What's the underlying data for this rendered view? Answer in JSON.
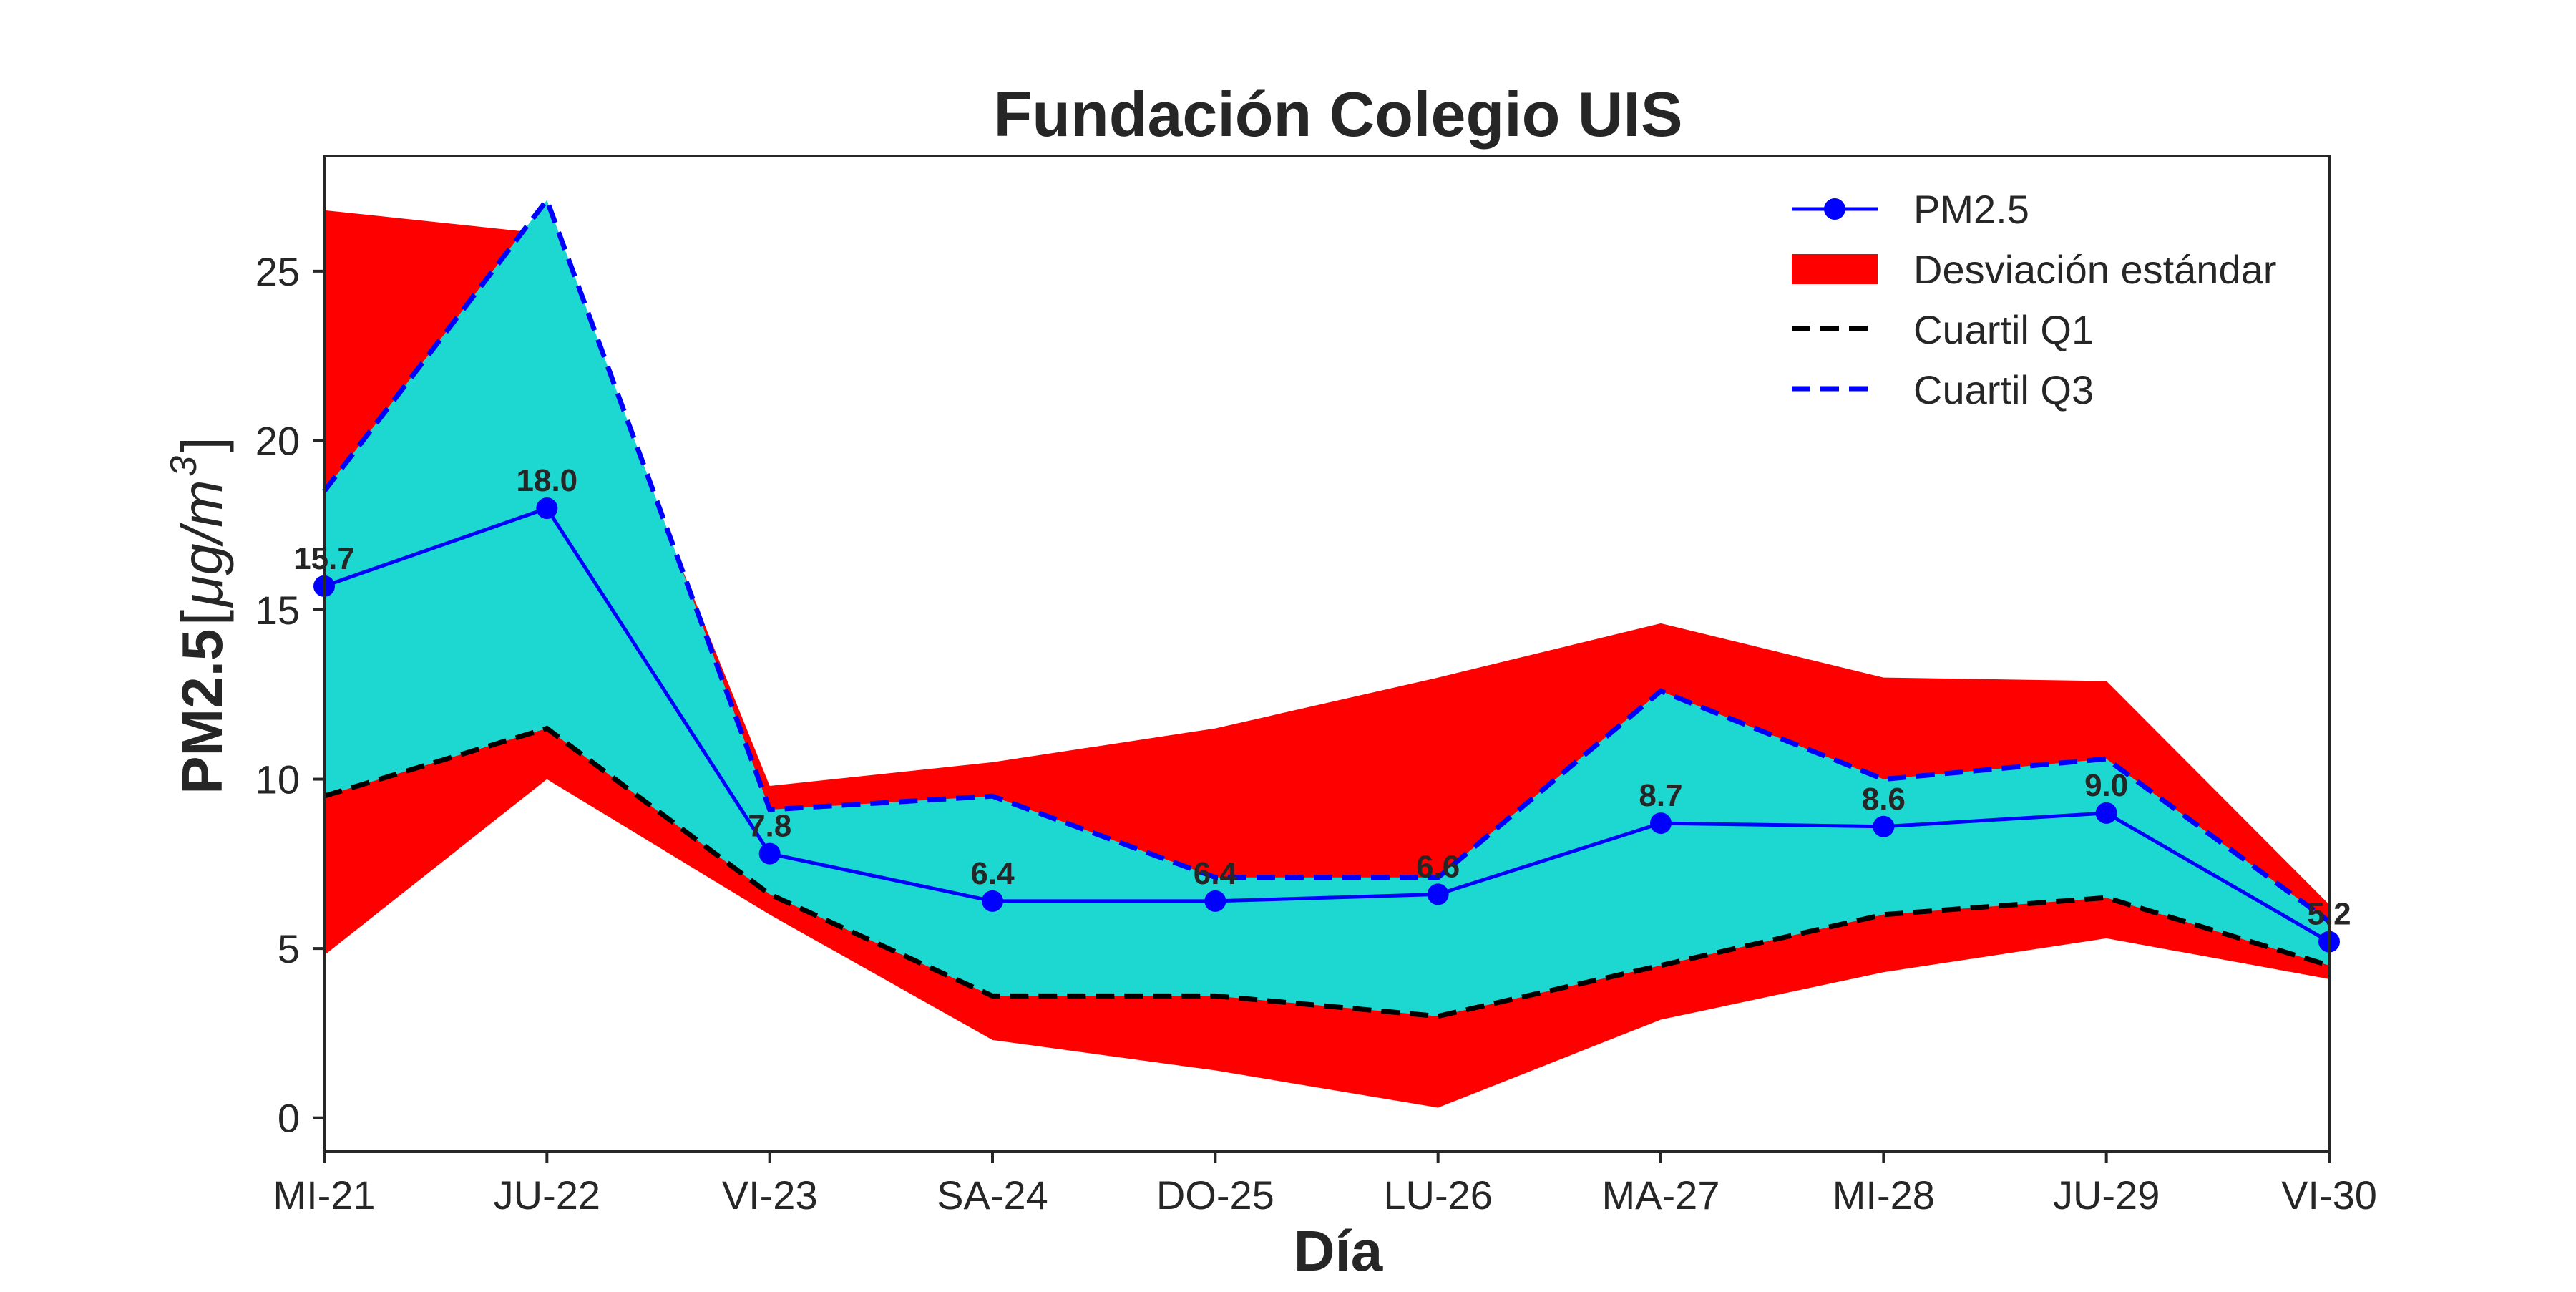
{
  "chart_data": {
    "type": "line",
    "title": "Fundación Colegio UIS",
    "xlabel": "Día",
    "ylabel_main": "PM2.5",
    "ylabel_unit_mu": "μg/m",
    "ylabel_unit_exp": "3",
    "categories": [
      "MI-21",
      "JU-22",
      "VI-23",
      "SA-24",
      "DO-25",
      "LU-26",
      "MA-27",
      "MI-28",
      "JU-29",
      "VI-30"
    ],
    "ylim": [
      -1,
      28.4
    ],
    "yticks": [
      0,
      5,
      10,
      15,
      20,
      25
    ],
    "grid": false,
    "legend_position": "top-right",
    "series": {
      "pm25": {
        "name": "PM2.5",
        "values": [
          15.7,
          18.0,
          7.8,
          6.4,
          6.4,
          6.6,
          8.7,
          8.6,
          9.0,
          5.2
        ],
        "color": "#0000ff"
      },
      "std_upper": [
        26.8,
        26.1,
        9.8,
        10.5,
        11.5,
        13.0,
        14.6,
        13.0,
        12.9,
        6.3
      ],
      "std_lower": [
        4.8,
        10.0,
        6.0,
        2.3,
        1.4,
        0.3,
        2.9,
        4.3,
        5.3,
        4.1
      ],
      "q1": {
        "name": "Cuartil Q1",
        "values": [
          9.5,
          11.5,
          6.6,
          3.6,
          3.6,
          3.0,
          4.5,
          6.0,
          6.5,
          4.5
        ],
        "color": "#000000"
      },
      "q3": {
        "name": "Cuartil Q3",
        "values": [
          18.5,
          27.1,
          9.1,
          9.5,
          7.1,
          7.1,
          12.6,
          10.0,
          10.6,
          5.8
        ],
        "color": "#0000ff"
      },
      "std_name": "Desviación estándar"
    },
    "data_labels": [
      "15.7",
      "18.0",
      "7.8",
      "6.4",
      "6.4",
      "6.6",
      "8.7",
      "8.6",
      "9.0",
      "5.2"
    ],
    "colors": {
      "std_fill": "#ff0000",
      "iqr_fill": "#1dd8d1",
      "axis": "#262626"
    }
  }
}
